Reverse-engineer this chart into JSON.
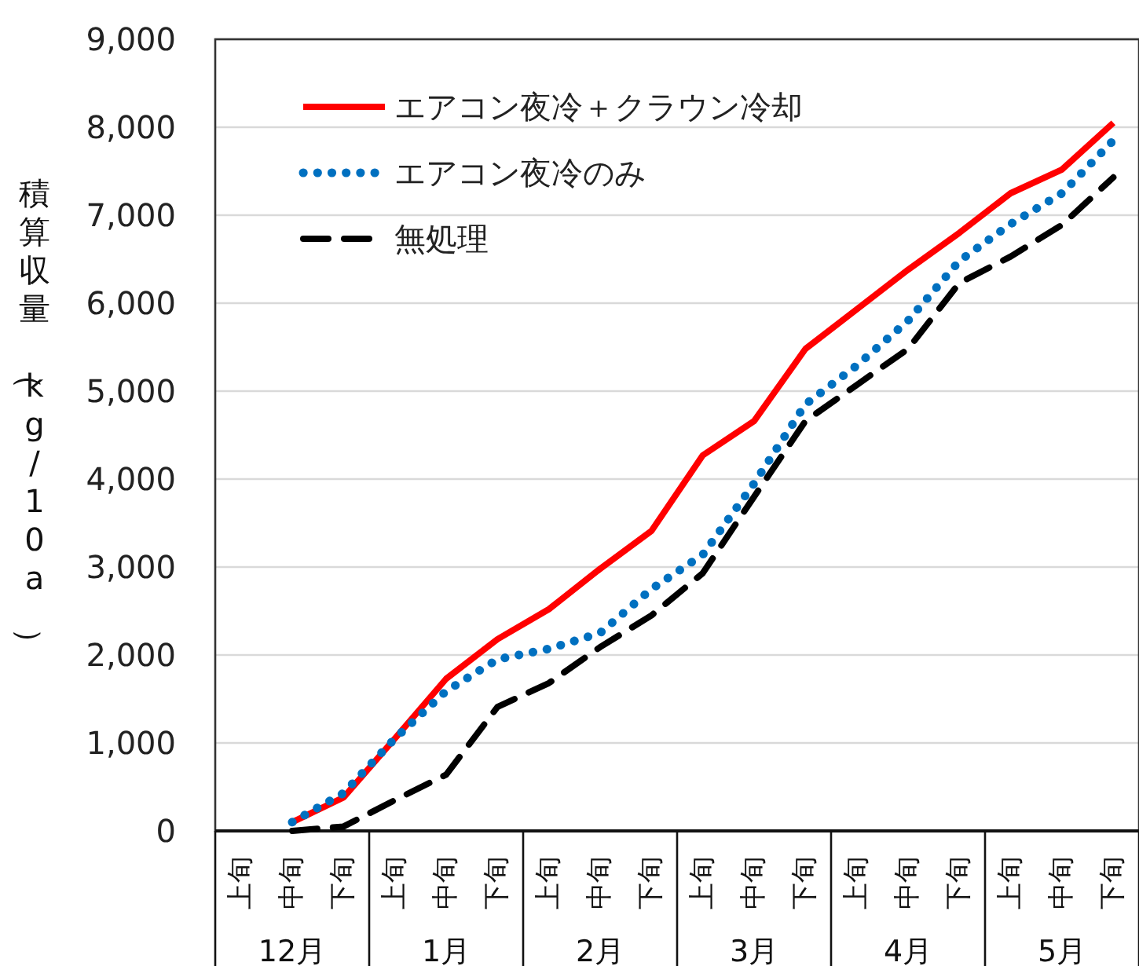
{
  "chart_data": {
    "type": "line",
    "ylabel": "積算収量（kg/10a）",
    "categories": [
      "上旬",
      "中旬",
      "下旬",
      "上旬",
      "中旬",
      "下旬",
      "上旬",
      "中旬",
      "下旬",
      "上旬",
      "中旬",
      "下旬",
      "上旬",
      "中旬",
      "下旬",
      "上旬",
      "中旬",
      "下旬"
    ],
    "annotations": [
      "12月",
      "1月",
      "2月",
      "3月",
      "4月",
      "5月"
    ],
    "ylim": [
      0,
      9000
    ],
    "yticks": [
      0,
      {
        "value": 1000,
        "label": "1,000"
      },
      {
        "value": 2000,
        "label": "2,000"
      },
      {
        "value": 3000,
        "label": "3,000"
      },
      {
        "value": 4000,
        "label": "4,000"
      },
      {
        "value": 5000,
        "label": "5,000"
      },
      {
        "value": 6000,
        "label": "6,000"
      },
      {
        "value": 7000,
        "label": "7,000"
      },
      {
        "value": 8000,
        "label": "8,000"
      },
      {
        "value": 9000,
        "label": "9,000"
      }
    ],
    "grid": "y",
    "legend": "top left",
    "series": [
      {
        "name": "エアコン夜冷＋クラウン冷却",
        "color": "#ff0000",
        "line_style": "solid",
        "values": [
          null,
          100,
          380,
          1050,
          1730,
          2180,
          2520,
          2980,
          3410,
          4270,
          4660,
          5480,
          5930,
          6380,
          6800,
          7250,
          7520,
          8050
        ]
      },
      {
        "name": "エアコン夜冷のみ",
        "color": "#0070c0",
        "line_style": "dotted",
        "values": [
          null,
          100,
          430,
          1050,
          1590,
          1950,
          2070,
          2250,
          2750,
          3140,
          3950,
          4850,
          5290,
          5800,
          6480,
          6900,
          7250,
          7850
        ]
      },
      {
        "name": "無処理",
        "color": "#000000",
        "line_style": "dashed",
        "values": [
          null,
          0,
          50,
          350,
          640,
          1410,
          1680,
          2090,
          2450,
          2930,
          3800,
          4660,
          5070,
          5480,
          6230,
          6530,
          6890,
          7430
        ]
      }
    ]
  }
}
